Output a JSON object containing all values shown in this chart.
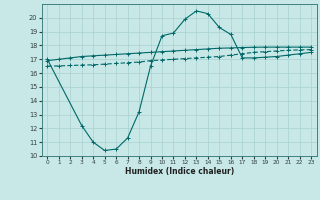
{
  "xlabel": "Humidex (Indice chaleur)",
  "bg_color": "#c8e8e8",
  "grid_color": "#a8d0d0",
  "line_color": "#006868",
  "xlim": [
    -0.5,
    23.5
  ],
  "ylim": [
    10,
    21
  ],
  "xticks": [
    0,
    1,
    2,
    3,
    4,
    5,
    6,
    7,
    8,
    9,
    10,
    11,
    12,
    13,
    14,
    15,
    16,
    17,
    18,
    19,
    20,
    21,
    22,
    23
  ],
  "yticks": [
    10,
    11,
    12,
    13,
    14,
    15,
    16,
    17,
    18,
    19,
    20
  ],
  "line1_x": [
    0,
    1,
    2,
    3,
    4,
    5,
    6,
    7,
    8,
    9,
    10,
    11,
    12,
    13,
    14,
    15,
    16,
    17,
    18,
    19,
    20,
    21,
    22,
    23
  ],
  "line1_y": [
    16.9,
    17.0,
    17.1,
    17.2,
    17.25,
    17.3,
    17.35,
    17.4,
    17.45,
    17.5,
    17.55,
    17.6,
    17.65,
    17.7,
    17.75,
    17.8,
    17.82,
    17.85,
    17.87,
    17.88,
    17.88,
    17.88,
    17.88,
    17.88
  ],
  "line2_x": [
    0,
    1,
    2,
    3,
    4,
    5,
    6,
    7,
    8,
    9,
    10,
    11,
    12,
    13,
    14,
    15,
    16,
    17,
    18,
    19,
    20,
    21,
    22,
    23
  ],
  "line2_y": [
    16.5,
    16.52,
    16.55,
    16.58,
    16.6,
    16.65,
    16.7,
    16.75,
    16.8,
    16.9,
    16.95,
    17.0,
    17.05,
    17.1,
    17.15,
    17.2,
    17.3,
    17.4,
    17.5,
    17.55,
    17.6,
    17.65,
    17.68,
    17.7
  ],
  "line3_x": [
    0,
    3,
    4,
    5,
    6,
    7,
    8,
    9,
    10,
    11,
    12,
    13,
    14,
    15,
    16,
    17,
    18,
    19,
    20,
    21,
    22,
    23
  ],
  "line3_y": [
    17.0,
    12.2,
    11.0,
    10.4,
    10.5,
    11.3,
    13.2,
    16.5,
    18.7,
    18.9,
    19.9,
    20.5,
    20.3,
    19.3,
    18.8,
    17.1,
    17.1,
    17.15,
    17.2,
    17.3,
    17.4,
    17.5
  ]
}
